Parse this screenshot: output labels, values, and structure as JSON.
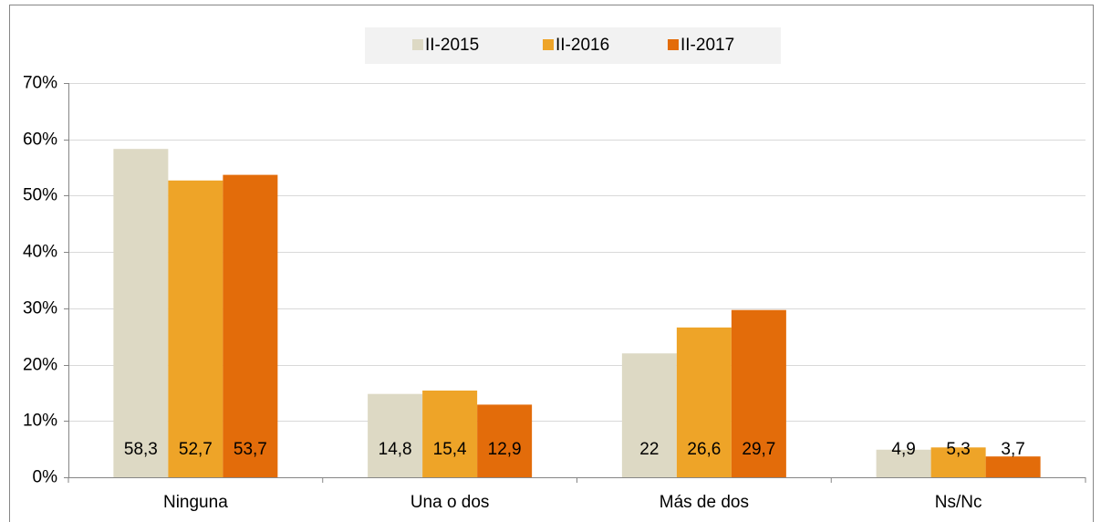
{
  "chart_data": {
    "type": "bar",
    "categories": [
      "Ninguna",
      "Una o dos",
      "Más de dos",
      "Ns/Nc"
    ],
    "series": [
      {
        "name": "II-2015",
        "color": "#ddd9c4",
        "values": [
          58.3,
          14.8,
          22,
          4.9
        ],
        "value_labels": [
          "58,3",
          "14,8",
          "22",
          "4,9"
        ]
      },
      {
        "name": "II-2016",
        "color": "#eea428",
        "values": [
          52.7,
          15.4,
          26.6,
          5.3
        ],
        "value_labels": [
          "52,7",
          "15,4",
          "26,6",
          "5,3"
        ]
      },
      {
        "name": "II-2017",
        "color": "#e36c0a",
        "values": [
          53.7,
          12.9,
          29.7,
          3.7
        ],
        "value_labels": [
          "53,7",
          "12,9",
          "29,7",
          "3,7"
        ]
      }
    ],
    "ylim": [
      0,
      70
    ],
    "yticks": [
      {
        "value": 0,
        "label": "0%"
      },
      {
        "value": 10,
        "label": "10%"
      },
      {
        "value": 20,
        "label": "20%"
      },
      {
        "value": 30,
        "label": "30%"
      },
      {
        "value": 40,
        "label": "40%"
      },
      {
        "value": 50,
        "label": "50%"
      },
      {
        "value": 60,
        "label": "60%"
      },
      {
        "value": 70,
        "label": "70%"
      }
    ],
    "grid": true,
    "legend": "top"
  }
}
